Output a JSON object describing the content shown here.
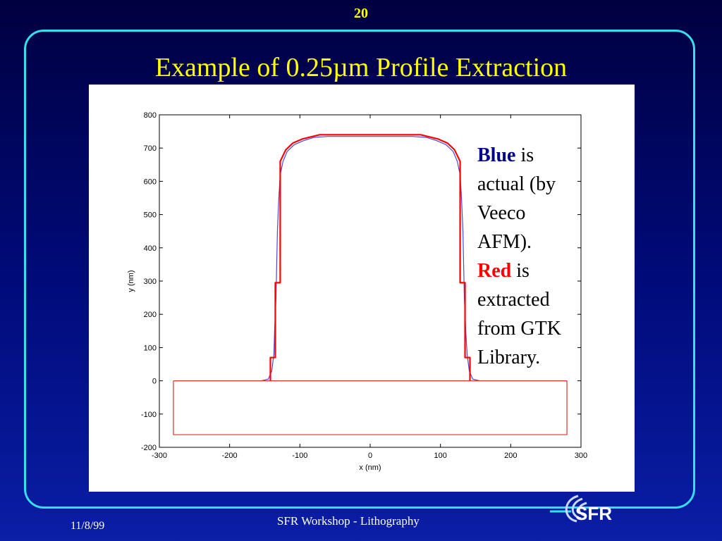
{
  "slide": {
    "number": "20",
    "title": "Example of 0.25µm Profile Extraction",
    "footer_date": "11/8/99",
    "footer_title": "SFR Workshop - Lithography",
    "logo_text": "SFR"
  },
  "annotation": {
    "blue_word": "Blue",
    "blue_rest": " is actual (by Veeco AFM).",
    "red_word": "Red",
    "red_rest": " is extracted from GTK Library."
  },
  "colors": {
    "background": "#000a78",
    "frame": "#33e0f0",
    "title": "#ffff00",
    "actual": "#4a4ad6",
    "extracted": "#ff0000"
  },
  "chart_data": {
    "type": "line",
    "xlabel": "x (nm)",
    "ylabel": "y (nm)",
    "xlim": [
      -300,
      300
    ],
    "ylim": [
      -200,
      800
    ],
    "xticks": [
      -300,
      -200,
      -100,
      0,
      100,
      200,
      300
    ],
    "yticks": [
      -200,
      -100,
      0,
      100,
      200,
      300,
      400,
      500,
      600,
      700,
      800
    ],
    "grid": false,
    "series": [
      {
        "color": "#4a4ad6",
        "x": [
          -155,
          -145,
          -140,
          -137,
          -136,
          -134,
          -133,
          -132,
          -130,
          -128,
          -124,
          -118,
          -108,
          -95,
          -80,
          -60,
          -40,
          0,
          40,
          60,
          80,
          95,
          108,
          118,
          124,
          128,
          130,
          132,
          133,
          134,
          136,
          138,
          141,
          146,
          156
        ],
        "y": [
          0,
          5,
          30,
          80,
          150,
          250,
          350,
          450,
          550,
          620,
          660,
          690,
          710,
          722,
          732,
          735,
          735,
          735,
          735,
          735,
          732,
          722,
          710,
          690,
          660,
          620,
          550,
          450,
          350,
          250,
          150,
          80,
          30,
          5,
          0
        ]
      },
      {
        "color": "#ff0000",
        "x": [
          -142,
          -142,
          -135,
          -135,
          -128,
          -128,
          -120,
          -110,
          -97,
          -72,
          72,
          97,
          110,
          120,
          128,
          128,
          135,
          135,
          142,
          142
        ],
        "y": [
          0,
          70,
          70,
          295,
          295,
          660,
          695,
          715,
          727,
          740,
          740,
          727,
          715,
          695,
          660,
          295,
          295,
          70,
          70,
          0
        ]
      },
      {
        "color": "#e03030",
        "x": [
          -280,
          280,
          280,
          -280,
          -280
        ],
        "y": [
          0,
          0,
          -162,
          -162,
          0
        ]
      }
    ]
  }
}
